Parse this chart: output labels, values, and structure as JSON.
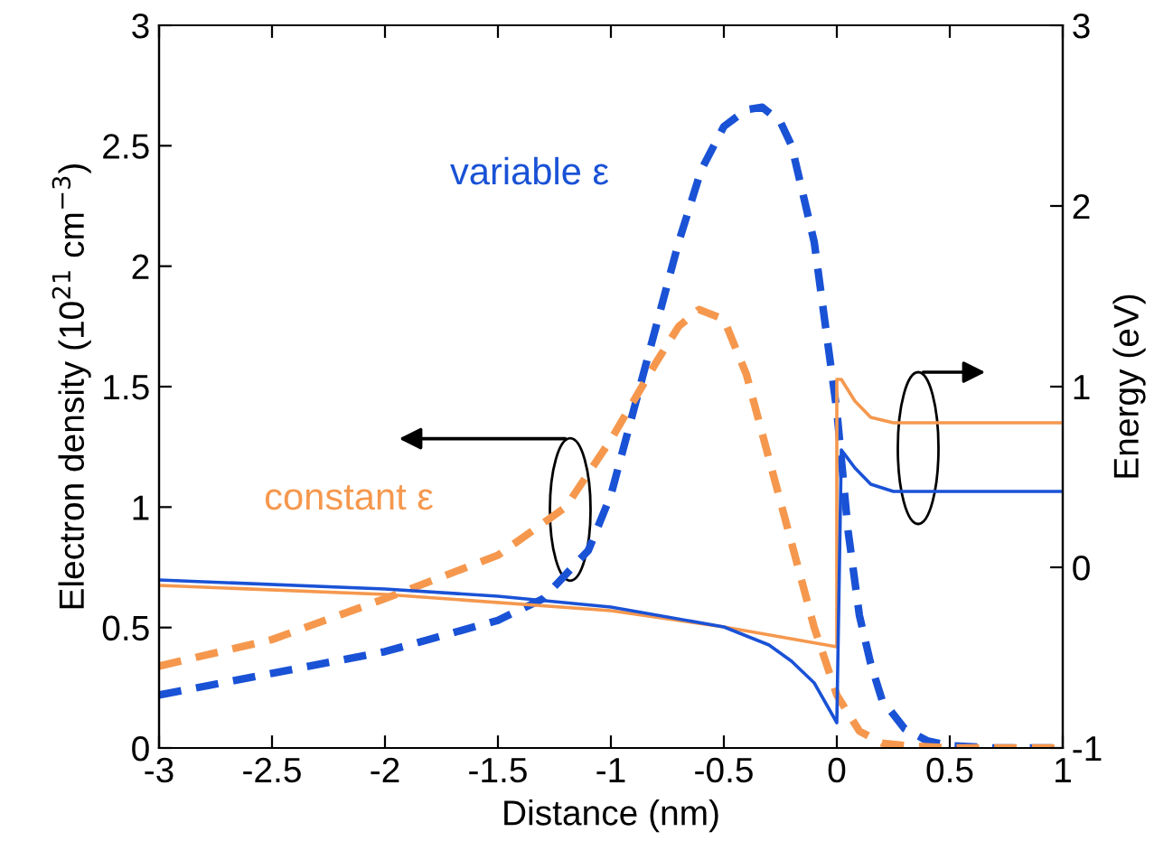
{
  "chart_data": {
    "type": "line",
    "xlabel": "Distance (nm)",
    "ylabel": "Electron density (10$^{21}$ cm$^{−3}$)",
    "y2label": "Energy (eV)",
    "xlim": [
      -3,
      1
    ],
    "xticks": [
      -3,
      -2.5,
      -2,
      -1.5,
      -1,
      -0.5,
      0,
      0.5,
      1
    ],
    "ylim": [
      0,
      3
    ],
    "yticks": [
      0,
      0.5,
      1,
      1.5,
      2,
      2.5,
      3
    ],
    "y2lim": [
      -1,
      3
    ],
    "y2ticks": [
      -1,
      0,
      1,
      2,
      3
    ],
    "grid": false,
    "series": [
      {
        "name": "variable ε",
        "color": "#1a52d6",
        "line_style": "dashed",
        "x": [
          -3,
          -2.5,
          -2,
          -1.5,
          -1.3,
          -1.1,
          -1,
          -0.9,
          -0.8,
          -0.7,
          -0.6,
          -0.5,
          -0.4,
          -0.33,
          -0.25,
          -0.2,
          -0.1,
          0,
          0.05,
          0.1,
          0.15,
          0.2,
          0.3,
          0.4,
          0.5,
          0.7,
          1
        ],
        "values": [
          0.22,
          0.31,
          0.4,
          0.53,
          0.62,
          0.82,
          1.05,
          1.4,
          1.75,
          2.1,
          2.4,
          2.58,
          2.65,
          2.66,
          2.6,
          2.5,
          2.1,
          1.4,
          0.9,
          0.55,
          0.35,
          0.2,
          0.08,
          0.03,
          0.01,
          0,
          0
        ]
      },
      {
        "name": "constant ε",
        "color": "#f5984e",
        "line_style": "dashed",
        "x": [
          -3,
          -2.5,
          -2,
          -1.5,
          -1.2,
          -1,
          -0.8,
          -0.7,
          -0.61,
          -0.5,
          -0.4,
          -0.3,
          -0.2,
          -0.1,
          0,
          0.1,
          0.2,
          0.3,
          0.5,
          1
        ],
        "values": [
          0.34,
          0.45,
          0.62,
          0.8,
          1.0,
          1.28,
          1.6,
          1.75,
          1.82,
          1.78,
          1.55,
          1.2,
          0.85,
          0.5,
          0.22,
          0.07,
          0.02,
          0.01,
          0,
          0
        ]
      },
      {
        "color": "#f5984e",
        "axis": "y2",
        "line_style": "solid",
        "x": [
          -3,
          -2,
          -1,
          -0.5,
          0,
          0,
          0.02,
          0.08,
          0.15,
          0.25,
          1
        ],
        "values": [
          -0.1,
          -0.15,
          -0.24,
          -0.33,
          -0.44,
          1.04,
          1.04,
          0.92,
          0.83,
          0.8,
          0.8
        ]
      },
      {
        "color": "#1a52d6",
        "axis": "y2",
        "line_style": "solid",
        "x": [
          -3,
          -2,
          -1.5,
          -1,
          -0.5,
          -0.3,
          -0.2,
          -0.1,
          0,
          0.02,
          0.08,
          0.15,
          0.25,
          1
        ],
        "values": [
          -0.07,
          -0.12,
          -0.16,
          -0.22,
          -0.33,
          -0.43,
          -0.52,
          -0.64,
          -0.86,
          0.65,
          0.55,
          0.46,
          0.42,
          0.42
        ]
      }
    ]
  }
}
